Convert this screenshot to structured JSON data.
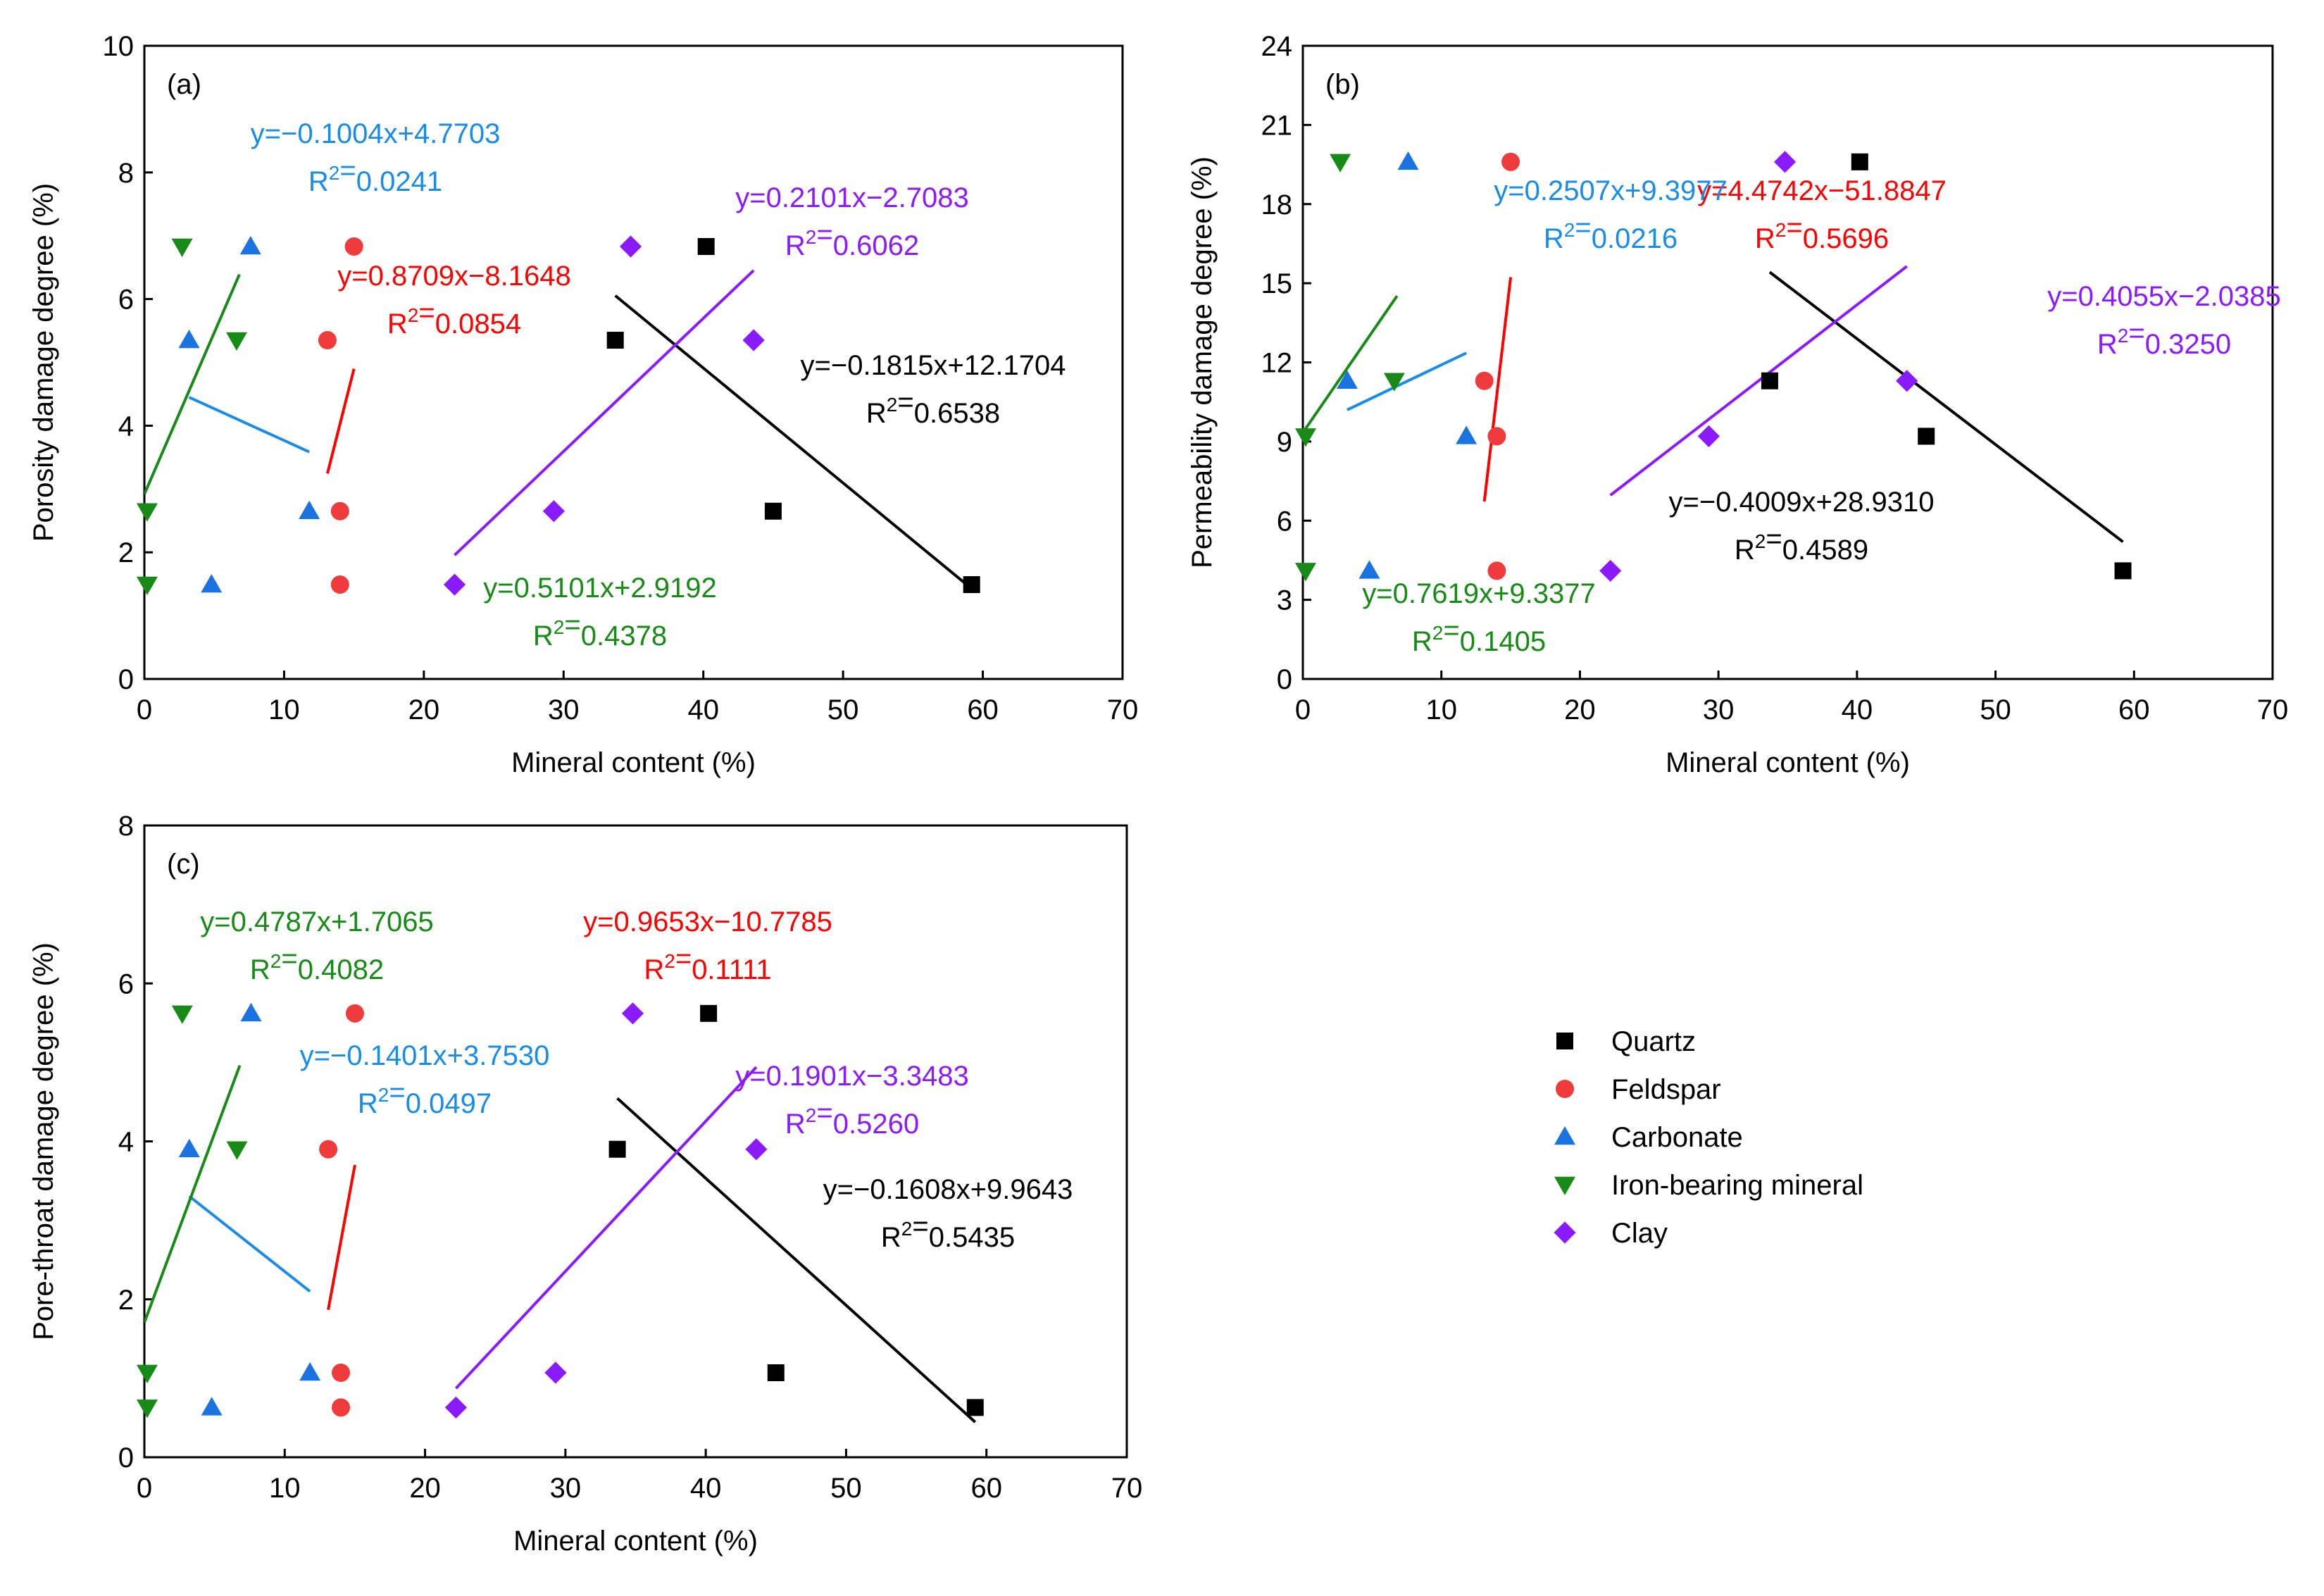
{
  "colors": {
    "quartz": "#000000",
    "feldspar": "#ef3b3b",
    "carbonate": "#1a73e0",
    "iron": "#188a18",
    "clay": "#8a1aff",
    "fit_quartz": "#000000",
    "fit_feldspar": "#ff0000",
    "fit_carbonate": "#1a8ce8",
    "fit_iron": "#188a18",
    "fit_clay": "#8a1aff"
  },
  "legend": [
    {
      "key": "quartz",
      "label": "Quartz",
      "marker": "square"
    },
    {
      "key": "feldspar",
      "label": "Feldspar",
      "marker": "circle"
    },
    {
      "key": "carbonate",
      "label": "Carbonate",
      "marker": "triangle-up"
    },
    {
      "key": "iron",
      "label": "Iron-bearing mineral",
      "marker": "triangle-down"
    },
    {
      "key": "clay",
      "label": "Clay",
      "marker": "diamond"
    }
  ],
  "chart_data": [
    {
      "type": "scatter",
      "panel": "(a)",
      "xlabel": "Mineral content (%)",
      "ylabel": "Porosity damage degree (%)",
      "xlim": [
        0,
        70
      ],
      "ylim": [
        0,
        10
      ],
      "xticks": [
        0,
        10,
        20,
        30,
        40,
        50,
        60,
        70
      ],
      "yticks": [
        0,
        2,
        4,
        6,
        8,
        10
      ],
      "series": [
        {
          "name": "Quartz",
          "key": "quartz",
          "marker": "square",
          "points": [
            [
              33.7,
              5.35
            ],
            [
              40.2,
              6.83
            ],
            [
              45.0,
              2.65
            ],
            [
              59.2,
              1.49
            ]
          ],
          "fit": {
            "range": [
              33.7,
              59.2
            ],
            "equation": "y=−0.1815x+12.1704",
            "r2": "0.6538"
          }
        },
        {
          "name": "Feldspar",
          "key": "feldspar",
          "marker": "circle",
          "points": [
            [
              13.1,
              5.35
            ],
            [
              15.0,
              6.83
            ],
            [
              14.0,
              2.65
            ],
            [
              14.0,
              1.49
            ]
          ],
          "fit": {
            "range": [
              13.1,
              15.0
            ],
            "equation": "y=0.8709x−8.1648",
            "r2": "0.0854"
          }
        },
        {
          "name": "Carbonate",
          "key": "carbonate",
          "marker": "triangle-up",
          "points": [
            [
              3.2,
              5.35
            ],
            [
              7.6,
              6.83
            ],
            [
              11.8,
              2.65
            ],
            [
              4.8,
              1.49
            ]
          ],
          "fit": {
            "range": [
              3.2,
              11.8
            ],
            "equation": "y=−0.1004x+4.7703",
            "r2": "0.0241"
          }
        },
        {
          "name": "Iron-bearing mineral",
          "key": "iron",
          "marker": "triangle-down",
          "points": [
            [
              2.7,
              6.83
            ],
            [
              6.6,
              5.35
            ],
            [
              0.2,
              2.65
            ],
            [
              0.2,
              1.49
            ]
          ],
          "fit": {
            "range": [
              0.0,
              6.8
            ],
            "equation": "y=0.5101x+2.9192",
            "r2": "0.4378"
          }
        },
        {
          "name": "Clay",
          "key": "clay",
          "marker": "diamond",
          "points": [
            [
              34.8,
              6.83
            ],
            [
              43.6,
              5.35
            ],
            [
              29.3,
              2.65
            ],
            [
              22.2,
              1.49
            ]
          ],
          "fit": {
            "range": [
              22.2,
              43.6
            ],
            "equation": "y=0.2101x−2.7083",
            "r2": "0.6062"
          }
        }
      ]
    },
    {
      "type": "scatter",
      "panel": "(b)",
      "xlabel": "Mineral content (%)",
      "ylabel": "Permeability damage degree (%)",
      "xlim": [
        0,
        70
      ],
      "ylim": [
        0,
        24
      ],
      "xticks": [
        0,
        10,
        20,
        30,
        40,
        50,
        60,
        70
      ],
      "yticks": [
        0,
        3,
        6,
        9,
        12,
        15,
        18,
        21,
        24
      ],
      "series": [
        {
          "name": "Quartz",
          "key": "quartz",
          "marker": "square",
          "points": [
            [
              40.2,
              19.6
            ],
            [
              33.7,
              11.3
            ],
            [
              45.0,
              9.2
            ],
            [
              59.2,
              4.1
            ]
          ],
          "fit": {
            "range": [
              33.7,
              59.2
            ],
            "equation": "y=−0.4009x+28.9310",
            "r2": "0.4589"
          }
        },
        {
          "name": "Feldspar",
          "key": "feldspar",
          "marker": "circle",
          "points": [
            [
              15.0,
              19.6
            ],
            [
              13.1,
              11.3
            ],
            [
              14.0,
              9.2
            ],
            [
              14.0,
              4.1
            ]
          ],
          "fit": {
            "range": [
              13.1,
              15.0
            ],
            "equation": "y=4.4742x−51.8847",
            "r2": "0.5696"
          }
        },
        {
          "name": "Carbonate",
          "key": "carbonate",
          "marker": "triangle-up",
          "points": [
            [
              7.6,
              19.6
            ],
            [
              3.2,
              11.3
            ],
            [
              11.8,
              9.2
            ],
            [
              4.8,
              4.1
            ]
          ],
          "fit": {
            "range": [
              3.2,
              11.8
            ],
            "equation": "y=0.2507x+9.3977",
            "r2": "0.0216"
          }
        },
        {
          "name": "Iron-bearing mineral",
          "key": "iron",
          "marker": "triangle-down",
          "points": [
            [
              2.7,
              19.6
            ],
            [
              6.6,
              11.3
            ],
            [
              0.2,
              9.2
            ],
            [
              0.2,
              4.1
            ]
          ],
          "fit": {
            "range": [
              0.0,
              6.8
            ],
            "equation": "y=0.7619x+9.3377",
            "r2": "0.1405"
          }
        },
        {
          "name": "Clay",
          "key": "clay",
          "marker": "diamond",
          "points": [
            [
              34.8,
              19.6
            ],
            [
              43.6,
              11.3
            ],
            [
              29.3,
              9.2
            ],
            [
              22.2,
              4.1
            ]
          ],
          "fit": {
            "range": [
              22.2,
              43.6
            ],
            "equation": "y=0.4055x−2.0385",
            "r2": "0.3250"
          }
        }
      ]
    },
    {
      "type": "scatter",
      "panel": "(c)",
      "xlabel": "Mineral content (%)",
      "ylabel": "Pore-throat damage degree (%)",
      "xlim": [
        0,
        70
      ],
      "ylim": [
        0,
        8
      ],
      "xticks": [
        0,
        10,
        20,
        30,
        40,
        50,
        60,
        70
      ],
      "yticks": [
        0,
        2,
        4,
        6,
        8
      ],
      "series": [
        {
          "name": "Quartz",
          "key": "quartz",
          "marker": "square",
          "points": [
            [
              40.2,
              5.62
            ],
            [
              33.7,
              3.9
            ],
            [
              45.0,
              1.07
            ],
            [
              59.2,
              0.63
            ]
          ],
          "fit": {
            "range": [
              33.7,
              59.2
            ],
            "equation": "y=−0.1608x+9.9643",
            "r2": "0.5435"
          }
        },
        {
          "name": "Feldspar",
          "key": "feldspar",
          "marker": "circle",
          "points": [
            [
              15.0,
              5.62
            ],
            [
              13.1,
              3.9
            ],
            [
              14.0,
              1.07
            ],
            [
              14.0,
              0.63
            ]
          ],
          "fit": {
            "range": [
              13.1,
              15.0
            ],
            "equation": "y=0.9653x−10.7785",
            "r2": "0.1111"
          }
        },
        {
          "name": "Carbonate",
          "key": "carbonate",
          "marker": "triangle-up",
          "points": [
            [
              7.6,
              5.62
            ],
            [
              3.2,
              3.9
            ],
            [
              11.8,
              1.07
            ],
            [
              4.8,
              0.63
            ]
          ],
          "fit": {
            "range": [
              3.2,
              11.8
            ],
            "equation": "y=−0.1401x+3.7530",
            "r2": "0.0497"
          }
        },
        {
          "name": "Iron-bearing mineral",
          "key": "iron",
          "marker": "triangle-down",
          "points": [
            [
              2.7,
              5.62
            ],
            [
              6.6,
              3.9
            ],
            [
              0.2,
              1.07
            ],
            [
              0.2,
              0.63
            ]
          ],
          "fit": {
            "range": [
              0.0,
              6.8
            ],
            "equation": "y=0.4787x+1.7065",
            "r2": "0.4082"
          }
        },
        {
          "name": "Clay",
          "key": "clay",
          "marker": "diamond",
          "points": [
            [
              34.8,
              5.62
            ],
            [
              43.6,
              3.9
            ],
            [
              29.3,
              1.07
            ],
            [
              22.2,
              0.63
            ]
          ],
          "fit": {
            "range": [
              22.2,
              43.6
            ],
            "equation": "y=0.1901x−3.3483",
            "r2": "0.5260"
          }
        }
      ]
    }
  ]
}
